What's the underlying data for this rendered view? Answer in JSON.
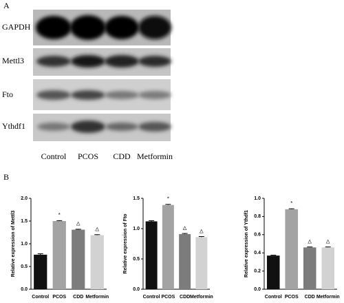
{
  "panel_a": {
    "label": "A",
    "rows": [
      "GAPDH",
      "Mettl3",
      "Fto",
      "Ythdf1"
    ],
    "columns": [
      "Control",
      "PCOS",
      "CDD",
      "Metformin"
    ]
  },
  "panel_b": {
    "label": "B"
  },
  "chart_data": [
    {
      "type": "bar",
      "ylabel": "Relative  expression of Mettl3",
      "categories": [
        "Control",
        "PCOS",
        "CDD",
        "Metformin"
      ],
      "values": [
        0.76,
        1.5,
        1.31,
        1.19
      ],
      "errors": [
        0.02,
        0.01,
        0.01,
        0.01
      ],
      "colors": [
        "#111111",
        "#a3a3a3",
        "#7c7c7c",
        "#d2d2d2"
      ],
      "markers": [
        null,
        "*",
        "△",
        "△"
      ],
      "ylim": [
        0,
        2
      ],
      "yticks": [
        {
          "value": 0,
          "label": "0.0"
        },
        0.5,
        {
          "value": 1,
          "label": "1.0"
        },
        1.5,
        {
          "value": 2,
          "label": "2.0"
        }
      ]
    },
    {
      "type": "bar",
      "ylabel": "Relative  expression of Fto",
      "categories": [
        "Control",
        "PCOS",
        "CDD",
        "Metformin"
      ],
      "values": [
        1.12,
        1.39,
        0.91,
        0.86
      ],
      "errors": [
        0.01,
        0.01,
        0.01,
        0.01
      ],
      "colors": [
        "#111111",
        "#a3a3a3",
        "#7c7c7c",
        "#d2d2d2"
      ],
      "markers": [
        null,
        "*",
        "△",
        "△"
      ],
      "ylim": [
        0,
        1.5
      ],
      "yticks": [
        {
          "value": 0,
          "label": "0.0"
        },
        0.5,
        {
          "value": 1,
          "label": "1.0"
        },
        1.5
      ]
    },
    {
      "type": "bar",
      "ylabel": "Relative  expression of Ythdf1",
      "categories": [
        "Control",
        "PCOS",
        "CDD",
        "Metformin"
      ],
      "values": [
        0.37,
        0.88,
        0.46,
        0.46
      ],
      "errors": [
        0.005,
        0.005,
        0.005,
        0.005
      ],
      "colors": [
        "#111111",
        "#a3a3a3",
        "#7c7c7c",
        "#d2d2d2"
      ],
      "markers": [
        null,
        "*",
        "△",
        "△"
      ],
      "ylim": [
        0,
        1
      ],
      "yticks": [
        {
          "value": 0,
          "label": "0.0"
        },
        0.2,
        0.4,
        0.6,
        0.8,
        {
          "value": 1,
          "label": "1.0"
        }
      ]
    }
  ]
}
